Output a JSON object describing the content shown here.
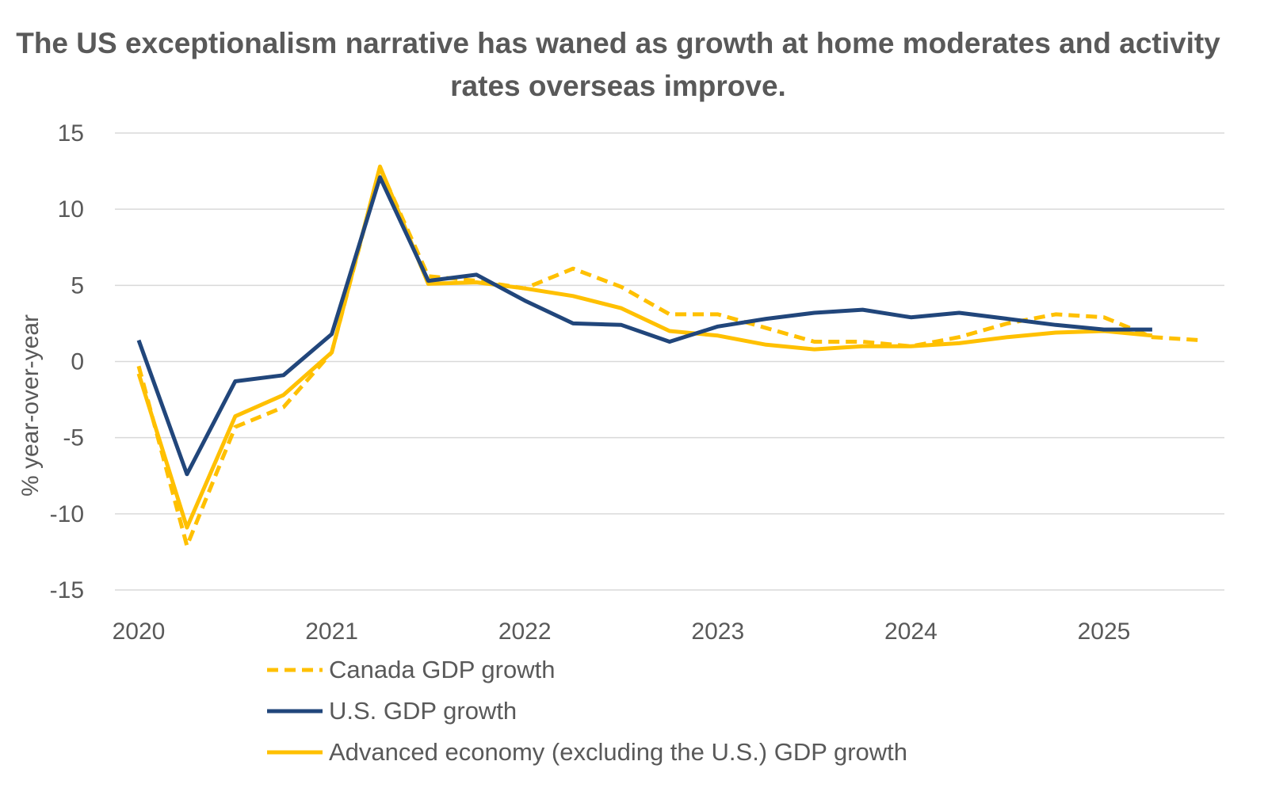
{
  "chart_data": {
    "type": "line",
    "title": "The US exceptionalism narrative has waned as growth at home moderates and activity rates overseas improve.",
    "xlabel": "",
    "ylabel": "% year-over-year",
    "ylim": [
      -15,
      15
    ],
    "yticks": [
      "15",
      "10",
      "5",
      "0",
      "-5",
      "-10",
      "-15"
    ],
    "xticks": [
      "2020",
      "2021",
      "2022",
      "2023",
      "2024",
      "2025"
    ],
    "grid": true,
    "legend_placement": "bottom",
    "x": [
      "2020Q1",
      "2020Q2",
      "2020Q3",
      "2020Q4",
      "2021Q1",
      "2021Q2",
      "2021Q3",
      "2021Q4",
      "2022Q1",
      "2022Q2",
      "2022Q3",
      "2022Q4",
      "2023Q1",
      "2023Q2",
      "2023Q3",
      "2023Q4",
      "2024Q1",
      "2024Q2",
      "2024Q3",
      "2024Q4",
      "2025Q1",
      "2025Q2",
      "2025Q3"
    ],
    "series": [
      {
        "name": "Canada GDP growth",
        "color": "#FFC000",
        "dash": true,
        "values": [
          -0.3,
          -12.1,
          -4.3,
          -3.0,
          0.6,
          12.7,
          5.6,
          5.3,
          4.8,
          6.1,
          4.9,
          3.1,
          3.1,
          2.2,
          1.3,
          1.3,
          1.0,
          1.6,
          2.5,
          3.1,
          2.9,
          1.6,
          1.4
        ]
      },
      {
        "name": "U.S. GDP growth",
        "color": "#21467B",
        "dash": false,
        "values": [
          1.4,
          -7.4,
          -1.3,
          -0.9,
          1.8,
          12.1,
          5.3,
          5.7,
          4.0,
          2.5,
          2.4,
          1.3,
          2.3,
          2.8,
          3.2,
          3.4,
          2.9,
          3.2,
          2.8,
          2.4,
          2.1,
          2.1,
          null
        ]
      },
      {
        "name": "Advanced economy (excluding the U.S.) GDP growth",
        "color": "#FFC000",
        "dash": false,
        "values": [
          -0.8,
          -10.9,
          -3.6,
          -2.2,
          0.6,
          12.8,
          5.1,
          5.2,
          4.8,
          4.3,
          3.5,
          2.0,
          1.7,
          1.1,
          0.8,
          1.0,
          1.0,
          1.2,
          1.6,
          1.9,
          2.0,
          1.7,
          null
        ]
      }
    ]
  }
}
